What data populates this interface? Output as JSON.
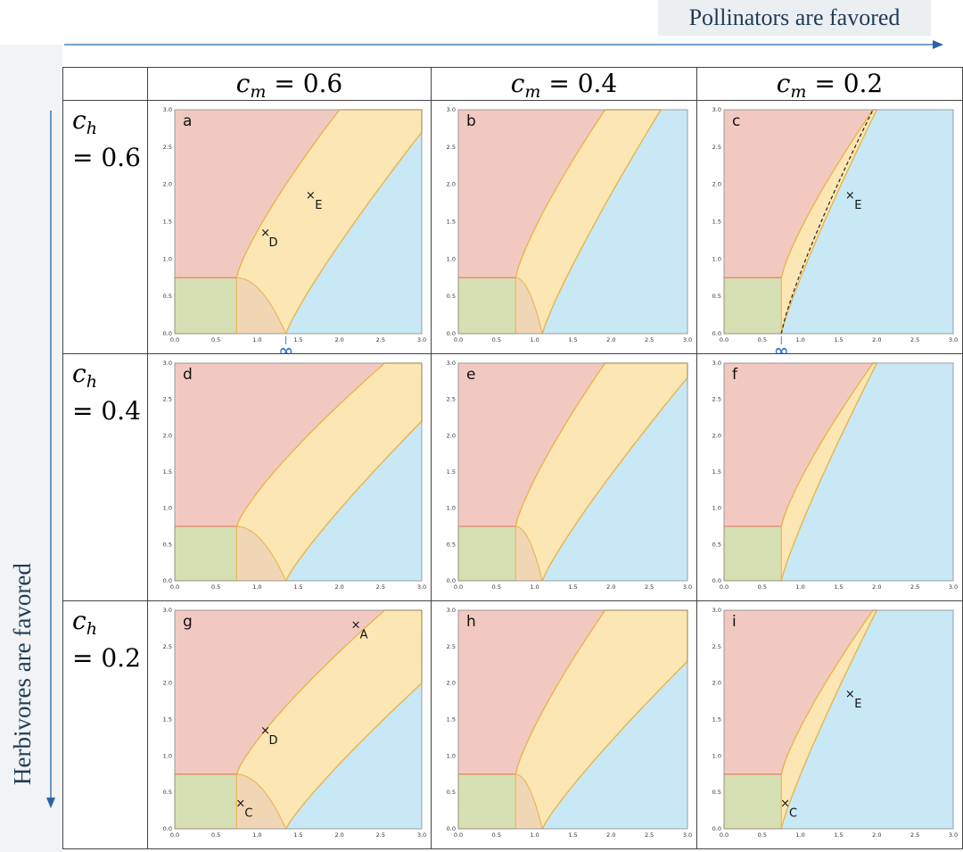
{
  "top_label": "Pollinators are favored",
  "side_label": "Herbivores are favored",
  "columns": [
    {
      "var": "c",
      "sub": "m",
      "rel": "= 0.6"
    },
    {
      "var": "c",
      "sub": "m",
      "rel": "= 0.4"
    },
    {
      "var": "c",
      "sub": "m",
      "rel": "= 0.2"
    }
  ],
  "rows": [
    {
      "var": "c",
      "sub": "h",
      "rel": "= 0.6"
    },
    {
      "var": "c",
      "sub": "h",
      "rel": "= 0.4"
    },
    {
      "var": "c",
      "sub": "h",
      "rel": "= 0.2"
    }
  ],
  "axis_ticks": {
    "x": [
      "0.0",
      "0.5",
      "1.0",
      "1.5",
      "2.0",
      "2.5",
      "3.0"
    ],
    "y": [
      "0.0",
      "0.5",
      "1.0",
      "1.5",
      "2.0",
      "2.5",
      "3.0"
    ]
  },
  "colors": {
    "red_region": "#f2c9c1",
    "yellow_region": "#fbe6b4",
    "blue_region": "#c8e8f5",
    "green_region": "#d6dfb4",
    "tan_region": "#f1d6b6",
    "red_edge": "#e8866d",
    "yellow_edge": "#e9b243",
    "arrow": "#2a64a8"
  },
  "panels": [
    {
      "label": "a",
      "boundary_a": 1.35,
      "top_bend": 2.7,
      "infinity": true,
      "inf_x": 1.35,
      "dashed": false,
      "markers": [
        {
          "label": "D",
          "x": 1.1,
          "y": 1.35
        },
        {
          "label": "E",
          "x": 1.65,
          "y": 1.85
        }
      ]
    },
    {
      "label": "b",
      "boundary_a": 1.1,
      "top_bend": 3.0,
      "infinity": false,
      "dashed": false,
      "markers": []
    },
    {
      "label": "c",
      "boundary_a": 0.75,
      "top_bend": 3.0,
      "infinity": true,
      "inf_x": 0.75,
      "dashed": true,
      "markers": [
        {
          "label": "E",
          "x": 1.65,
          "y": 1.85
        }
      ]
    },
    {
      "label": "d",
      "boundary_a": 1.35,
      "top_bend": 2.2,
      "infinity": false,
      "dashed": false,
      "markers": []
    },
    {
      "label": "e",
      "boundary_a": 1.1,
      "top_bend": 2.8,
      "infinity": false,
      "dashed": false,
      "markers": []
    },
    {
      "label": "f",
      "boundary_a": 0.75,
      "top_bend": 3.0,
      "infinity": false,
      "dashed": false,
      "markers": []
    },
    {
      "label": "g",
      "boundary_a": 1.35,
      "top_bend": 2.0,
      "infinity": false,
      "dashed": false,
      "markers": [
        {
          "label": "A",
          "x": 2.2,
          "y": 2.8
        },
        {
          "label": "D",
          "x": 1.1,
          "y": 1.35
        },
        {
          "label": "C",
          "x": 0.8,
          "y": 0.35
        }
      ]
    },
    {
      "label": "h",
      "boundary_a": 1.1,
      "top_bend": 2.3,
      "infinity": false,
      "dashed": false,
      "markers": []
    },
    {
      "label": "i",
      "boundary_a": 0.75,
      "top_bend": 3.0,
      "infinity": false,
      "dashed": false,
      "markers": [
        {
          "label": "E",
          "x": 1.65,
          "y": 1.85
        },
        {
          "label": "C",
          "x": 0.8,
          "y": 0.35
        }
      ]
    }
  ]
}
